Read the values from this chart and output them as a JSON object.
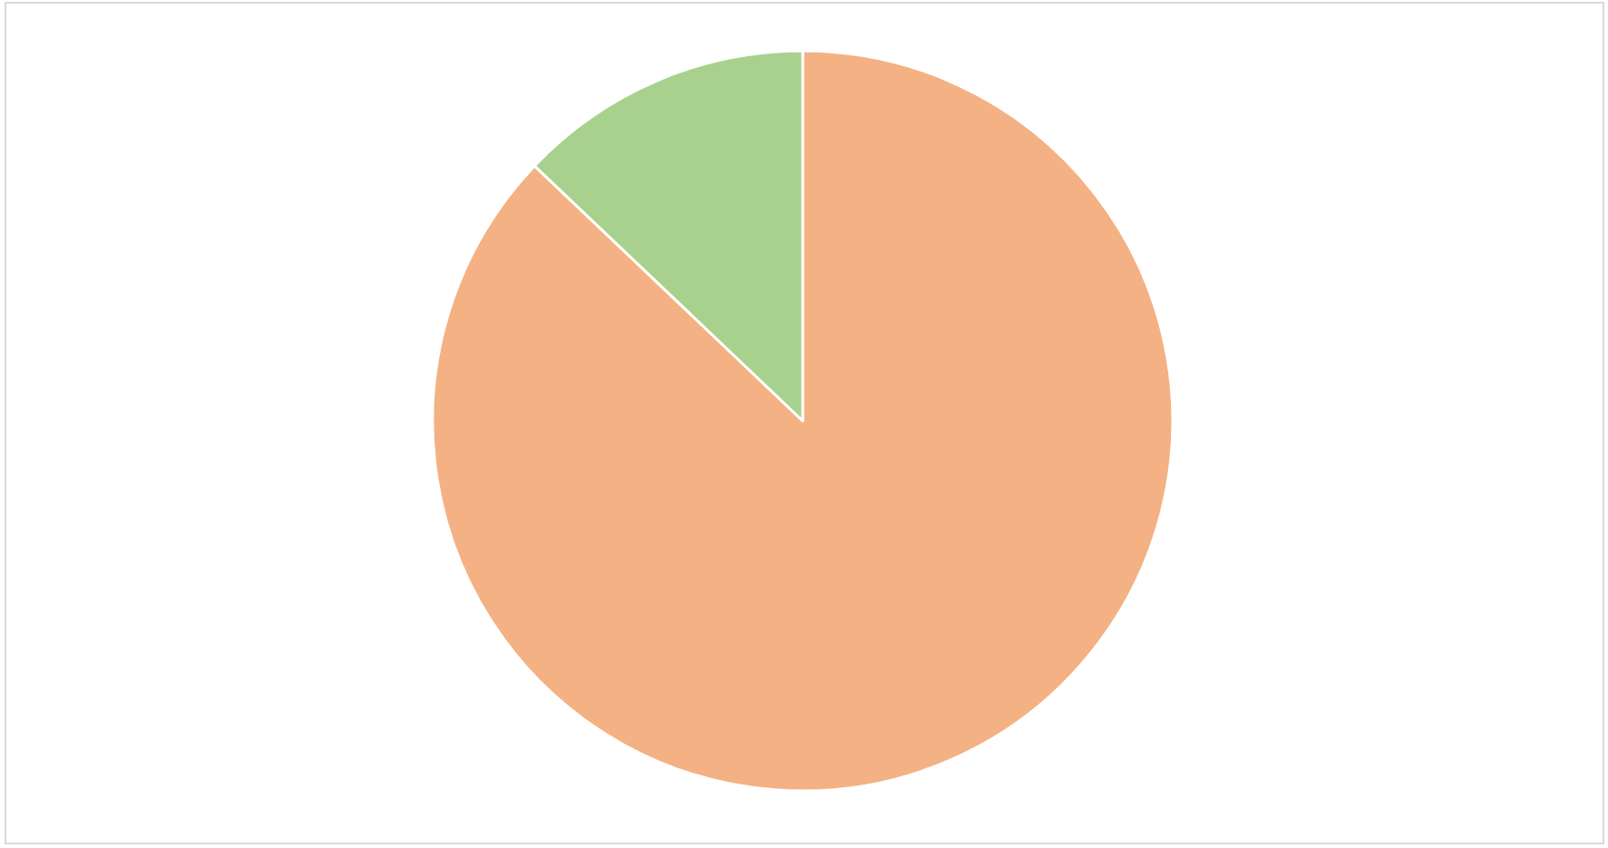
{
  "chart_data": {
    "type": "pie",
    "categories": [
      null,
      null
    ],
    "values": [
      87.1,
      12.9
    ],
    "colors": [
      "#f4b183",
      "#a9d18e"
    ]
  }
}
